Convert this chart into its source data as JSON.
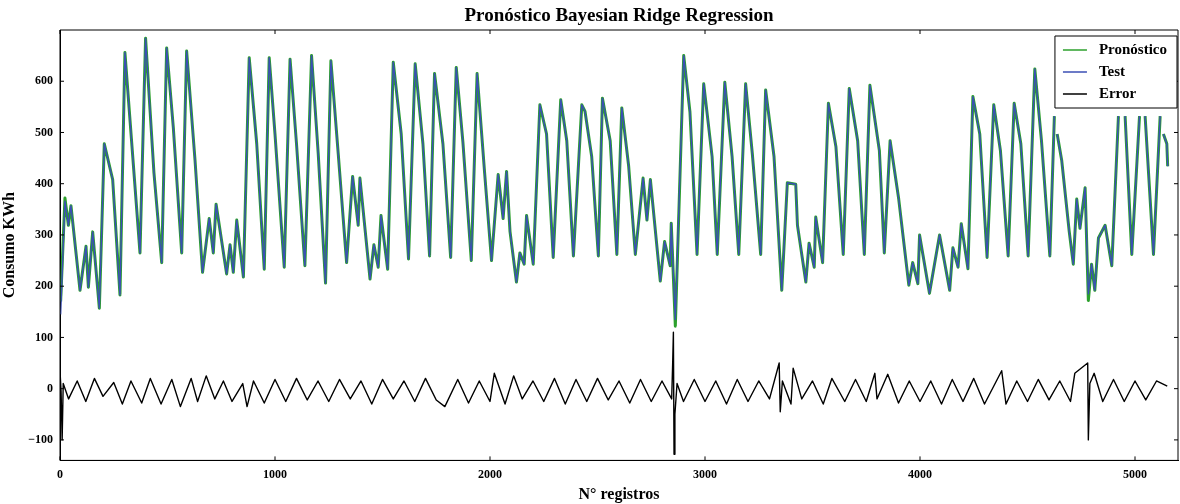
{
  "chart_data": {
    "type": "line",
    "title": "Pronóstico Bayesian Ridge Regression",
    "xlabel": "N° registros",
    "ylabel": "Consumo KWh",
    "xlim": [
      0,
      5200
    ],
    "xticks": [
      0,
      1000,
      2000,
      3000,
      4000,
      5000
    ],
    "ylim": [
      -140,
      700
    ],
    "yticks": [
      -100,
      0,
      100,
      200,
      300,
      400,
      500,
      600
    ],
    "grid": false,
    "legend": "top right",
    "series": [
      {
        "name": "Pronóstico",
        "color": "#2ca02c",
        "x": [
          3,
          23,
          39,
          51,
          93,
          121,
          132,
          152,
          183,
          206,
          245,
          279,
          302,
          372,
          398,
          437,
          473,
          496,
          527,
          566,
          589,
          628,
          663,
          694,
          713,
          726,
          775,
          791,
          806,
          822,
          853,
          880,
          915,
          950,
          973,
          1000,
          1043,
          1070,
          1100,
          1139,
          1170,
          1201,
          1235,
          1260,
          1294,
          1333,
          1361,
          1387,
          1395,
          1442,
          1460,
          1480,
          1493,
          1524,
          1550,
          1587,
          1621,
          1652,
          1688,
          1719,
          1742,
          1781,
          1817,
          1843,
          1874,
          1913,
          1940,
          1975,
          2007,
          2038,
          2061,
          2077,
          2093,
          2123,
          2139,
          2159,
          2170,
          2201,
          2232,
          2263,
          2294,
          2329,
          2357,
          2388,
          2427,
          2442,
          2473,
          2504,
          2523,
          2559,
          2590,
          2613,
          2645,
          2676,
          2712,
          2730,
          2746,
          2792,
          2812,
          2838,
          2843,
          2862,
          2901,
          2930,
          2963,
          2994,
          3033,
          3057,
          3092,
          3126,
          3157,
          3189,
          3220,
          3259,
          3282,
          3321,
          3357,
          3383,
          3422,
          3430,
          3469,
          3484,
          3508,
          3515,
          3547,
          3574,
          3609,
          3643,
          3671,
          3710,
          3741,
          3767,
          3811,
          3834,
          3861,
          3901,
          3948,
          3966,
          3990,
          3998,
          4044,
          4091,
          4138,
          4153,
          4177,
          4192,
          4223,
          4246,
          4278,
          4312,
          4343,
          4374,
          4410,
          4438,
          4469,
          4503,
          4534,
          4565,
          4604,
          4625,
          4632,
          4638,
          4659,
          4694,
          4713,
          4729,
          4744,
          4768,
          4783,
          4798,
          4813,
          4830,
          4861,
          4892,
          4923,
          4938,
          4954,
          4985,
          5021,
          5034,
          5047,
          5086,
          5117,
          5125,
          5132,
          5148,
          5152
        ],
        "values": [
          170,
          372,
          319,
          357,
          192,
          278,
          198,
          306,
          157,
          478,
          408,
          183,
          656,
          265,
          684,
          421,
          246,
          665,
          510,
          265,
          659,
          446,
          227,
          332,
          265,
          360,
          224,
          281,
          227,
          329,
          218,
          646,
          478,
          233,
          646,
          497,
          237,
          643,
          478,
          240,
          650,
          459,
          206,
          640,
          459,
          246,
          414,
          319,
          411,
          214,
          281,
          237,
          338,
          233,
          637,
          497,
          253,
          634,
          478,
          259,
          615,
          478,
          256,
          627,
          481,
          250,
          615,
          421,
          250,
          418,
          332,
          424,
          307,
          208,
          265,
          243,
          338,
          243,
          554,
          497,
          256,
          564,
          484,
          259,
          554,
          541,
          453,
          259,
          567,
          484,
          262,
          548,
          434,
          262,
          411,
          329,
          408,
          210,
          287,
          240,
          323,
          122,
          650,
          540,
          262,
          595,
          453,
          262,
          598,
          453,
          262,
          595,
          459,
          262,
          583,
          453,
          192,
          402,
          399,
          319,
          208,
          284,
          237,
          335,
          246,
          557,
          472,
          262,
          586,
          484,
          262,
          592,
          465,
          265,
          484,
          370,
          202,
          246,
          205,
          300,
          186,
          300,
          192,
          275,
          237,
          322,
          234,
          570,
          497,
          256,
          554,
          465,
          259,
          557,
          478,
          259,
          624,
          484,
          259,
          532,
          null,
          497,
          446,
          307,
          243,
          370,
          313,
          392,
          172,
          243,
          192,
          294,
          319,
          240,
          532,
          null,
          532,
          262,
          532,
          null,
          532,
          262,
          532,
          null,
          497,
          478,
          434
        ]
      },
      {
        "name": "Test",
        "color": "#3b4fb5",
        "x": [
          3,
          23,
          39,
          51,
          93,
          121,
          132,
          152,
          183,
          206,
          245,
          279,
          302,
          372,
          398,
          437,
          473,
          496,
          527,
          566,
          589,
          628,
          663,
          694,
          713,
          726,
          775,
          791,
          806,
          822,
          853,
          880,
          915,
          950,
          973,
          1000,
          1043,
          1070,
          1100,
          1139,
          1170,
          1201,
          1235,
          1260,
          1294,
          1333,
          1361,
          1387,
          1395,
          1442,
          1460,
          1480,
          1493,
          1524,
          1550,
          1587,
          1621,
          1652,
          1688,
          1719,
          1742,
          1781,
          1817,
          1843,
          1874,
          1913,
          1940,
          1975,
          2007,
          2038,
          2061,
          2077,
          2093,
          2123,
          2139,
          2159,
          2170,
          2201,
          2232,
          2263,
          2294,
          2329,
          2357,
          2388,
          2427,
          2442,
          2473,
          2504,
          2523,
          2559,
          2590,
          2613,
          2645,
          2676,
          2712,
          2730,
          2746,
          2792,
          2812,
          2838,
          2843,
          2862,
          2901,
          2930,
          2963,
          2994,
          3033,
          3057,
          3092,
          3126,
          3157,
          3189,
          3220,
          3259,
          3282,
          3321,
          3357,
          3383,
          3422,
          3430,
          3469,
          3484,
          3508,
          3515,
          3547,
          3574,
          3609,
          3643,
          3671,
          3710,
          3741,
          3767,
          3811,
          3834,
          3861,
          3901,
          3948,
          3966,
          3990,
          3998,
          4044,
          4091,
          4138,
          4153,
          4177,
          4192,
          4223,
          4246,
          4278,
          4312,
          4343,
          4374,
          4410,
          4438,
          4469,
          4503,
          4534,
          4565,
          4604,
          4625,
          4632,
          4638,
          4659,
          4694,
          4713,
          4729,
          4744,
          4768,
          4783,
          4798,
          4813,
          4830,
          4861,
          4892,
          4923,
          4938,
          4954,
          4985,
          5021,
          5034,
          5047,
          5086,
          5117,
          5125,
          5132,
          5148,
          5152
        ],
        "values": [
          145,
          366,
          319,
          357,
          192,
          278,
          198,
          306,
          157,
          478,
          408,
          183,
          656,
          265,
          684,
          421,
          246,
          665,
          510,
          265,
          659,
          446,
          227,
          332,
          265,
          360,
          224,
          281,
          227,
          329,
          218,
          646,
          478,
          233,
          646,
          497,
          237,
          643,
          478,
          240,
          650,
          459,
          206,
          640,
          459,
          246,
          414,
          319,
          411,
          214,
          281,
          237,
          338,
          233,
          637,
          497,
          253,
          634,
          478,
          259,
          615,
          478,
          256,
          627,
          481,
          250,
          615,
          421,
          250,
          418,
          332,
          424,
          307,
          208,
          265,
          243,
          338,
          243,
          554,
          497,
          256,
          564,
          484,
          259,
          554,
          541,
          453,
          259,
          567,
          484,
          262,
          548,
          434,
          262,
          411,
          329,
          408,
          210,
          287,
          240,
          323,
          135,
          650,
          540,
          262,
          595,
          453,
          262,
          598,
          453,
          262,
          595,
          459,
          262,
          583,
          453,
          192,
          402,
          399,
          319,
          208,
          284,
          237,
          335,
          246,
          557,
          472,
          262,
          586,
          484,
          262,
          592,
          465,
          265,
          484,
          370,
          202,
          246,
          205,
          300,
          186,
          300,
          192,
          275,
          237,
          322,
          234,
          570,
          497,
          256,
          554,
          465,
          259,
          557,
          478,
          259,
          624,
          484,
          259,
          532,
          null,
          497,
          446,
          307,
          243,
          370,
          313,
          392,
          185,
          243,
          192,
          294,
          319,
          240,
          532,
          null,
          532,
          262,
          532,
          null,
          532,
          262,
          532,
          null,
          497,
          478,
          434
        ]
      },
      {
        "name": "Error",
        "color": "#000000",
        "x": [
          0,
          5,
          10,
          15,
          40,
          80,
          120,
          160,
          200,
          250,
          290,
          330,
          380,
          420,
          470,
          520,
          560,
          610,
          640,
          680,
          720,
          760,
          800,
          850,
          870,
          900,
          950,
          1000,
          1050,
          1100,
          1150,
          1200,
          1250,
          1300,
          1350,
          1400,
          1450,
          1500,
          1550,
          1600,
          1650,
          1700,
          1750,
          1790,
          1850,
          1900,
          1950,
          2000,
          2020,
          2070,
          2110,
          2150,
          2200,
          2250,
          2300,
          2350,
          2400,
          2450,
          2500,
          2550,
          2600,
          2650,
          2700,
          2750,
          2800,
          2845,
          2850,
          2853,
          2856,
          2860,
          2870,
          2900,
          2950,
          3000,
          3050,
          3100,
          3150,
          3200,
          3250,
          3300,
          3345,
          3350,
          3360,
          3400,
          3410,
          3450,
          3500,
          3550,
          3590,
          3650,
          3700,
          3750,
          3790,
          3800,
          3850,
          3900,
          3950,
          4000,
          4050,
          4100,
          4150,
          4200,
          4250,
          4300,
          4380,
          4400,
          4450,
          4500,
          4550,
          4600,
          4650,
          4700,
          4720,
          4780,
          4783,
          4790,
          4810,
          4850,
          4900,
          4950,
          5000,
          5050,
          5100,
          5150
        ],
        "values": [
          35,
          -5,
          -100,
          10,
          -20,
          15,
          -25,
          20,
          -15,
          12,
          -30,
          15,
          -28,
          20,
          -30,
          18,
          -35,
          20,
          -25,
          25,
          -20,
          15,
          -25,
          10,
          -35,
          15,
          -28,
          18,
          -25,
          20,
          -22,
          15,
          -25,
          18,
          -20,
          15,
          -30,
          18,
          -20,
          15,
          -25,
          20,
          -22,
          -35,
          18,
          -28,
          15,
          -25,
          30,
          -30,
          25,
          -20,
          15,
          -25,
          20,
          -30,
          18,
          -25,
          20,
          -22,
          15,
          -28,
          18,
          -25,
          15,
          -20,
          55,
          110,
          -128,
          -50,
          10,
          -25,
          18,
          -25,
          15,
          -30,
          18,
          -25,
          15,
          -20,
          50,
          -45,
          15,
          -30,
          40,
          -20,
          15,
          -30,
          20,
          -25,
          18,
          -25,
          30,
          -20,
          28,
          -28,
          15,
          -25,
          15,
          -30,
          18,
          -25,
          20,
          -30,
          35,
          -30,
          15,
          -25,
          18,
          -22,
          15,
          -25,
          30,
          50,
          -100,
          10,
          30,
          -25,
          18,
          -25,
          15,
          -22,
          15,
          5
        ]
      }
    ]
  }
}
